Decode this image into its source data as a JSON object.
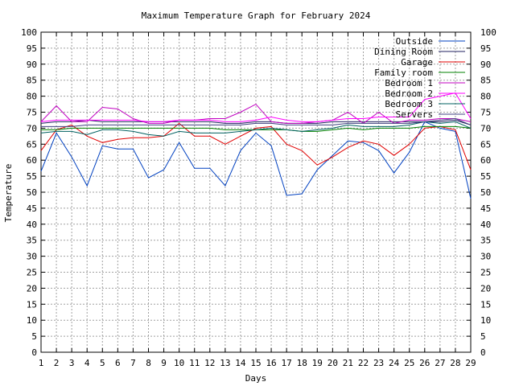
{
  "chart_data": {
    "type": "line",
    "title": "Maximum Temperature Graph for February 2024",
    "xlabel": "Days",
    "ylabel": "Temperature",
    "xlim": [
      1,
      29
    ],
    "ylim": [
      0,
      100
    ],
    "x": [
      1,
      2,
      3,
      4,
      5,
      6,
      7,
      8,
      9,
      10,
      11,
      12,
      13,
      14,
      15,
      16,
      17,
      18,
      19,
      20,
      21,
      22,
      23,
      24,
      25,
      26,
      27,
      28,
      29
    ],
    "x_ticks": [
      "1",
      "2",
      "3",
      "4",
      "5",
      "6",
      "7",
      "8",
      "9",
      "10",
      "11",
      "12",
      "13",
      "14",
      "15",
      "16",
      "17",
      "18",
      "19",
      "20",
      "21",
      "22",
      "23",
      "24",
      "25",
      "26",
      "27",
      "28",
      "29"
    ],
    "y_ticks": [
      "0",
      "5",
      "10",
      "15",
      "20",
      "25",
      "30",
      "35",
      "40",
      "45",
      "50",
      "55",
      "60",
      "65",
      "70",
      "75",
      "80",
      "85",
      "90",
      "95",
      "100"
    ],
    "grid": true,
    "legend_position": "top-right",
    "series": [
      {
        "name": "Outside",
        "color": "#0040c0",
        "values": [
          56.5,
          68.5,
          61,
          52,
          64.5,
          63.5,
          63.5,
          54.5,
          57,
          65.5,
          57.5,
          57.5,
          52,
          63,
          68.5,
          64.5,
          49,
          49.5,
          57,
          61.5,
          66,
          65.5,
          63,
          56,
          62.5,
          72,
          70,
          69,
          48
        ]
      },
      {
        "name": "Dining Room",
        "color": "#202060",
        "values": [
          71.5,
          72,
          72,
          72.5,
          72,
          72,
          72,
          72,
          72,
          72,
          72,
          72,
          71.5,
          71.5,
          72,
          72,
          71.5,
          71.5,
          71.5,
          72,
          72,
          72,
          72,
          72,
          72,
          72,
          72,
          72.5,
          71
        ]
      },
      {
        "name": "Garage",
        "color": "#e00000",
        "values": [
          63,
          69.5,
          71,
          67.5,
          65.5,
          66.5,
          67,
          67,
          67.5,
          71.5,
          67.5,
          67.5,
          65,
          67.5,
          70,
          70.5,
          65,
          63,
          58.5,
          61,
          64,
          66,
          65,
          61.5,
          65,
          70,
          70.5,
          69.5,
          57
        ]
      },
      {
        "name": "Family room",
        "color": "#008000",
        "values": [
          69.5,
          69.5,
          70,
          70,
          70,
          70,
          70,
          70,
          70,
          70,
          70,
          70,
          69.5,
          69.5,
          69.5,
          69.5,
          69.5,
          69,
          69,
          69.5,
          70,
          69.5,
          70,
          70,
          70,
          70.5,
          70.5,
          70.5,
          70
        ]
      },
      {
        "name": "Bedroom 1",
        "color": "#c000c0",
        "values": [
          72,
          77,
          72,
          72,
          76.5,
          76,
          73,
          71.5,
          71.5,
          72.5,
          72.5,
          73,
          73,
          75,
          77.5,
          72,
          71.5,
          71.5,
          72,
          72.5,
          75,
          71.5,
          75,
          71.5,
          72.5,
          72.5,
          73,
          73,
          72
        ]
      },
      {
        "name": "Bedroom 2",
        "color": "#ff00ff",
        "values": [
          72,
          72.5,
          72.5,
          72.5,
          72.5,
          72.5,
          72.5,
          72,
          72,
          72.5,
          72.5,
          72.5,
          72,
          72,
          72.5,
          73.5,
          72.5,
          72,
          72,
          72.5,
          73,
          73,
          73.5,
          73.5,
          73.5,
          79,
          80,
          81,
          73
        ]
      },
      {
        "name": "Bedroom 3",
        "color": "#006060",
        "values": [
          68.5,
          69,
          69,
          68,
          69.5,
          69.5,
          69,
          68,
          67.5,
          69,
          68.5,
          68.5,
          68.5,
          69,
          69.5,
          70,
          69.5,
          69,
          69.5,
          70,
          71,
          70.5,
          70.5,
          70.5,
          71,
          72,
          71.5,
          72,
          70
        ]
      },
      {
        "name": "Servers",
        "color": "#404080",
        "values": [
          70.5,
          70.5,
          70.5,
          71,
          71,
          71,
          71,
          71,
          71,
          71,
          71,
          71,
          71,
          71,
          71.5,
          71.5,
          71,
          71,
          71,
          71,
          71.5,
          71.5,
          71.5,
          71.5,
          71.5,
          72,
          72.5,
          73,
          71
        ]
      }
    ]
  }
}
